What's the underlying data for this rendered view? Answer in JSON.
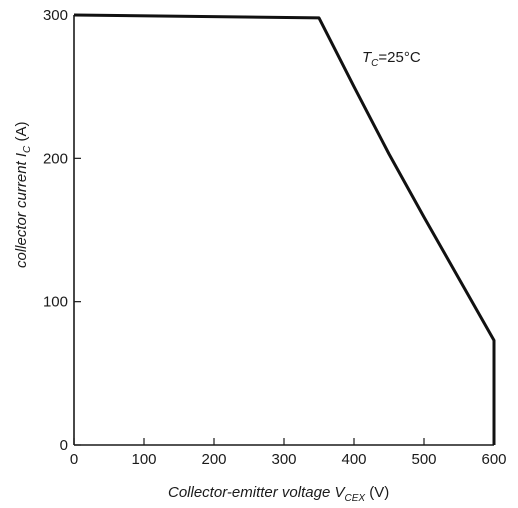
{
  "chart_data": {
    "type": "line",
    "title": "",
    "annotation": {
      "symbol": "T",
      "subscript": "C",
      "text": "=25°C"
    },
    "xlabel": {
      "prefix": "Collector-emitter voltage ",
      "symbol": "V",
      "subscript": "CEX",
      "unit": " (V)"
    },
    "ylabel": {
      "prefix": "collector current ",
      "symbol": "I",
      "subscript": "C",
      "unit": " (A)"
    },
    "xlim": [
      0,
      600
    ],
    "ylim": [
      0,
      300
    ],
    "xticks": [
      0,
      100,
      200,
      300,
      400,
      500,
      600
    ],
    "yticks": [
      0,
      100,
      200,
      300
    ],
    "grid": false,
    "series": [
      {
        "x": [
          0,
          350,
          400,
          450,
          500,
          550,
          600,
          600
        ],
        "y": [
          300,
          298,
          250,
          203,
          159,
          116,
          73,
          0
        ]
      }
    ]
  }
}
